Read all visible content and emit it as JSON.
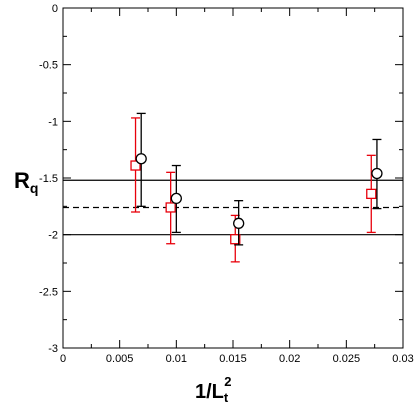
{
  "chart_data": {
    "type": "scatter",
    "xlabel_main": "1/L",
    "xlabel_sub": "t",
    "xlabel_sup": "2",
    "ylabel_main": "R",
    "ylabel_sub": "q",
    "xlim": [
      0,
      0.03
    ],
    "ylim": [
      -3,
      0
    ],
    "x_ticks": [
      0,
      0.005,
      0.01,
      0.015,
      0.02,
      0.025,
      0.03
    ],
    "x_tick_labels": [
      "0",
      "0.005",
      "0.01",
      "0.015",
      "0.02",
      "0.025",
      "0.03"
    ],
    "y_ticks": [
      0,
      -0.5,
      -1,
      -1.5,
      -2,
      -2.5,
      -3
    ],
    "y_tick_labels": [
      "0",
      "-0.5",
      "-1",
      "-1.5",
      "-2",
      "-2.5",
      "-3"
    ],
    "grid": false,
    "legend": "none",
    "series": [
      {
        "marker": "square",
        "color": "#e8000b",
        "points": [
          {
            "x": 0.0064,
            "y": -1.39,
            "err_low": -1.8,
            "err_high": -0.97
          },
          {
            "x": 0.0095,
            "y": -1.76,
            "err_low": -2.08,
            "err_high": -1.45
          },
          {
            "x": 0.0152,
            "y": -2.04,
            "err_low": -2.24,
            "err_high": -1.83
          },
          {
            "x": 0.0272,
            "y": -1.64,
            "err_low": -1.98,
            "err_high": -1.3
          }
        ]
      },
      {
        "marker": "circle",
        "color": "#000000",
        "points": [
          {
            "x": 0.0069,
            "y": -1.33,
            "err_low": -1.75,
            "err_high": -0.93
          },
          {
            "x": 0.01,
            "y": -1.68,
            "err_low": -1.98,
            "err_high": -1.39
          },
          {
            "x": 0.0155,
            "y": -1.9,
            "err_low": -2.09,
            "err_high": -1.7
          },
          {
            "x": 0.0277,
            "y": -1.46,
            "err_low": -1.77,
            "err_high": -1.16
          }
        ]
      }
    ],
    "reference_lines": [
      {
        "y": -1.52,
        "style": "solid",
        "color": "#000000"
      },
      {
        "y": -1.76,
        "style": "dashed",
        "color": "#000000"
      },
      {
        "y": -2.0,
        "style": "solid",
        "color": "#000000"
      }
    ]
  }
}
